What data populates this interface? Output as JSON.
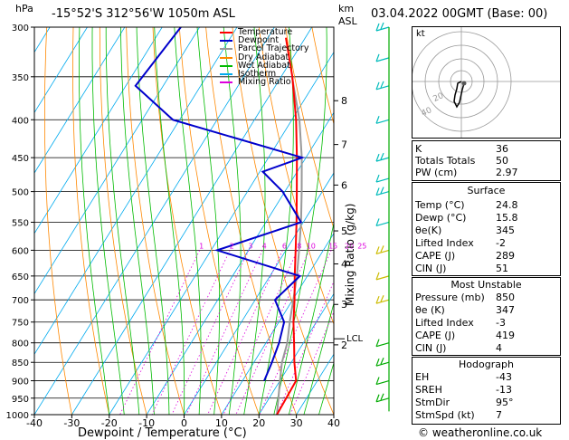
{
  "header": {
    "hpa_label": "hPa",
    "location": "-15°52'S  312°56'W  1050m  ASL",
    "km_label": "km",
    "asl_label": "ASL",
    "datetime": "03.04.2022  00GMT  (Base: 00)"
  },
  "legend": [
    {
      "label": "Temperature",
      "color": "#ff0000"
    },
    {
      "label": "Dewpoint",
      "color": "#0000cc"
    },
    {
      "label": "Parcel Trajectory",
      "color": "#999999"
    },
    {
      "label": "Dry Adiabat",
      "color": "#ff8800"
    },
    {
      "label": "Wet Adiabat",
      "color": "#00bb00"
    },
    {
      "label": "Isotherm",
      "color": "#00aaee"
    },
    {
      "label": "Mixing Ratio",
      "color": "#dd00dd"
    }
  ],
  "chart_data": {
    "type": "skew-t",
    "xlabel": "Dewpoint / Temperature (°C)",
    "ylabel_right": "Mixing Ratio (g/kg)",
    "x_ticks": [
      "-40",
      "-30",
      "-20",
      "-10",
      "0",
      "10",
      "20",
      "30",
      "40"
    ],
    "pressure_ticks": [
      "300",
      "350",
      "400",
      "450",
      "500",
      "550",
      "600",
      "650",
      "700",
      "750",
      "800",
      "850",
      "900",
      "950",
      "1000"
    ],
    "km_ticks": [
      {
        "label": "8",
        "p": 377
      },
      {
        "label": "7",
        "p": 432
      },
      {
        "label": "6",
        "p": 490
      },
      {
        "label": "5",
        "p": 565
      },
      {
        "label": "4",
        "p": 626
      },
      {
        "label": "3",
        "p": 710
      },
      {
        "label": "2",
        "p": 805
      }
    ],
    "lcl": {
      "label": "LCL",
      "p": 790
    },
    "mixing_ratio_labels": [
      "1",
      "2",
      "3",
      "4",
      "6",
      "8",
      "10",
      "15",
      "20",
      "25"
    ],
    "temperature_profile": [
      [
        1000,
        24.8
      ],
      [
        900,
        24.3
      ],
      [
        850,
        20.8
      ],
      [
        800,
        17.5
      ],
      [
        750,
        13.9
      ],
      [
        700,
        10.5
      ],
      [
        650,
        6.6
      ],
      [
        600,
        2.6
      ],
      [
        550,
        -1.8
      ],
      [
        500,
        -6.8
      ],
      [
        450,
        -12.4
      ],
      [
        400,
        -18.9
      ],
      [
        350,
        -27.0
      ],
      [
        310,
        -35.2
      ]
    ],
    "dewpoint_profile": [
      [
        900,
        15.8
      ],
      [
        850,
        14.8
      ],
      [
        800,
        13.5
      ],
      [
        750,
        11.4
      ],
      [
        700,
        5.3
      ],
      [
        650,
        8.0
      ],
      [
        600,
        -18.4
      ],
      [
        550,
        -0.6
      ],
      [
        500,
        -10.6
      ],
      [
        470,
        -19.2
      ],
      [
        450,
        -11.0
      ],
      [
        400,
        -51.8
      ],
      [
        360,
        -67.4
      ],
      [
        300,
        -65.0
      ]
    ],
    "parcel_profile": [
      [
        1000,
        24.8
      ],
      [
        900,
        20.0
      ],
      [
        850,
        17.5
      ],
      [
        800,
        15.7
      ],
      [
        750,
        12.9
      ],
      [
        700,
        10.2
      ],
      [
        650,
        7.2
      ],
      [
        600,
        3.5
      ],
      [
        550,
        -0.6
      ],
      [
        500,
        -5.5
      ],
      [
        450,
        -11.1
      ],
      [
        400,
        -18.0
      ],
      [
        350,
        -27.1
      ]
    ]
  },
  "wind_barbs": {
    "label": "wind barbs",
    "levels": [
      300,
      330,
      360,
      400,
      450,
      480,
      500,
      550,
      600,
      650,
      700,
      800,
      850,
      900,
      950
    ]
  },
  "hodograph": {
    "unit_label": "kt",
    "ring_labels": [
      "20",
      "40"
    ]
  },
  "indices": [
    {
      "key": "K",
      "value": "36"
    },
    {
      "key": "Totals Totals",
      "value": "50"
    },
    {
      "key": "PW (cm)",
      "value": "2.97"
    }
  ],
  "surface": {
    "title": "Surface",
    "rows": [
      {
        "key": "Temp (°C)",
        "value": "24.8"
      },
      {
        "key": "Dewp (°C)",
        "value": "15.8"
      },
      {
        "key": "θe(K)",
        "value": "345"
      },
      {
        "key": "Lifted Index",
        "value": "-2"
      },
      {
        "key": "CAPE (J)",
        "value": "289"
      },
      {
        "key": "CIN (J)",
        "value": "51"
      }
    ]
  },
  "most_unstable": {
    "title": "Most Unstable",
    "rows": [
      {
        "key": "Pressure (mb)",
        "value": "850"
      },
      {
        "key": "θe (K)",
        "value": "347"
      },
      {
        "key": "Lifted Index",
        "value": "-3"
      },
      {
        "key": "CAPE (J)",
        "value": "419"
      },
      {
        "key": "CIN (J)",
        "value": "4"
      }
    ]
  },
  "hodograph_table": {
    "title": "Hodograph",
    "rows": [
      {
        "key": "EH",
        "value": "-43"
      },
      {
        "key": "SREH",
        "value": "-13"
      },
      {
        "key": "StmDir",
        "value": "95°"
      },
      {
        "key": "StmSpd (kt)",
        "value": "7"
      }
    ]
  },
  "footer": {
    "copyright": "© weatheronline.co.uk"
  }
}
